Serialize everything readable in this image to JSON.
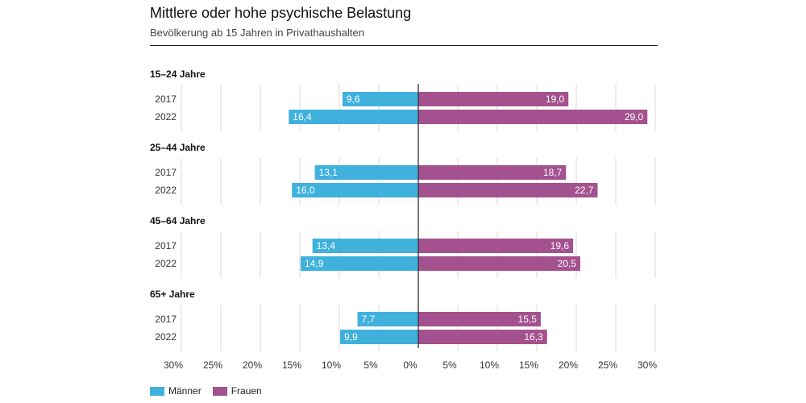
{
  "title": "Mittlere oder hohe psychische Belastung",
  "subtitle": "Bevölkerung ab 15 Jahren in Privathaushalten",
  "colors": {
    "maenner": "#3fb1dc",
    "frauen": "#a4518f",
    "grid": "#d9d9d9",
    "axis": "#333333"
  },
  "legend": [
    {
      "name": "Männer",
      "color": "#3fb1dc"
    },
    {
      "name": "Frauen",
      "color": "#a4518f"
    }
  ],
  "chart_data": {
    "type": "bar",
    "orientation": "horizontal-diverging",
    "title": "Mittlere oder hohe psychische Belastung",
    "subtitle": "Bevölkerung ab 15 Jahren in Privathaushalten",
    "xlim": [
      -30,
      30
    ],
    "x_ticks": [
      "30%",
      "25%",
      "20%",
      "15%",
      "10%",
      "5%",
      "0%",
      "5%",
      "10%",
      "15%",
      "20%",
      "25%",
      "30%"
    ],
    "grid": true,
    "legend_position": "bottom-left",
    "series_names": [
      "Männer",
      "Frauen"
    ],
    "groups": [
      {
        "label": "15–24 Jahre",
        "rows": [
          {
            "year": "2017",
            "maenner": 9.6,
            "frauen": 19.0,
            "maenner_label": "9,6",
            "frauen_label": "19,0"
          },
          {
            "year": "2022",
            "maenner": 16.4,
            "frauen": 29.0,
            "maenner_label": "16,4",
            "frauen_label": "29,0"
          }
        ]
      },
      {
        "label": "25–44 Jahre",
        "rows": [
          {
            "year": "2017",
            "maenner": 13.1,
            "frauen": 18.7,
            "maenner_label": "13,1",
            "frauen_label": "18,7"
          },
          {
            "year": "2022",
            "maenner": 16.0,
            "frauen": 22.7,
            "maenner_label": "16,0",
            "frauen_label": "22,7"
          }
        ]
      },
      {
        "label": "45–64 Jahre",
        "rows": [
          {
            "year": "2017",
            "maenner": 13.4,
            "frauen": 19.6,
            "maenner_label": "13,4",
            "frauen_label": "19,6"
          },
          {
            "year": "2022",
            "maenner": 14.9,
            "frauen": 20.5,
            "maenner_label": "14,9",
            "frauen_label": "20,5"
          }
        ]
      },
      {
        "label": "65+ Jahre",
        "rows": [
          {
            "year": "2017",
            "maenner": 7.7,
            "frauen": 15.5,
            "maenner_label": "7,7",
            "frauen_label": "15,5"
          },
          {
            "year": "2022",
            "maenner": 9.9,
            "frauen": 16.3,
            "maenner_label": "9,9",
            "frauen_label": "16,3"
          }
        ]
      }
    ]
  }
}
